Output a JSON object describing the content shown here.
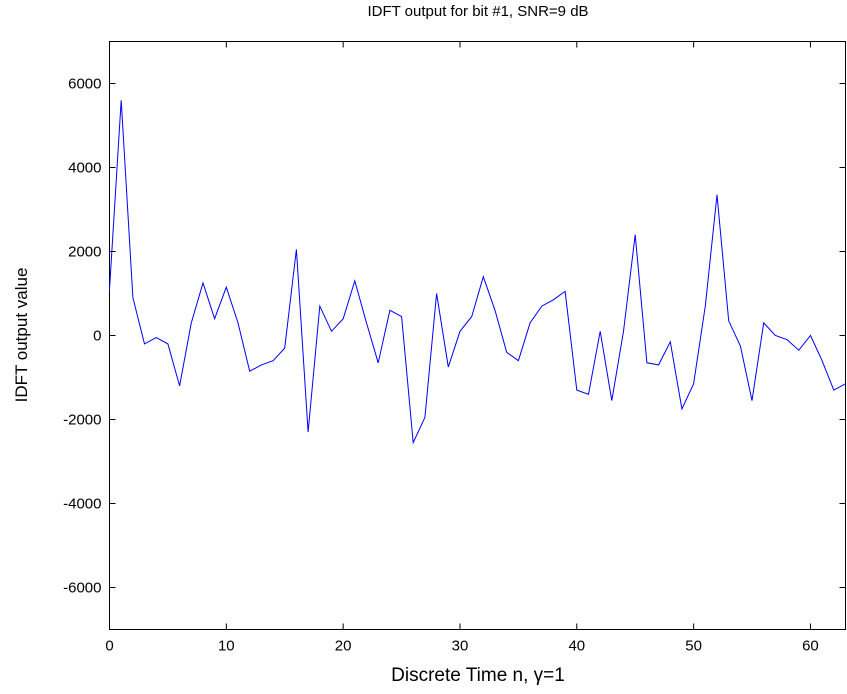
{
  "chart_data": {
    "type": "line",
    "title": "IDFT output for bit #1, SNR=9 dB",
    "xlabel": "Discrete Time n, γ=1",
    "ylabel": "IDFT output value",
    "xlim": [
      0,
      63
    ],
    "ylim": [
      -7000,
      7000
    ],
    "xticks": [
      0,
      10,
      20,
      30,
      40,
      50,
      60
    ],
    "yticks": [
      -6000,
      -4000,
      -2000,
      0,
      2000,
      4000,
      6000
    ],
    "grid": false,
    "series_color": "#0000ff",
    "x": [
      0,
      1,
      2,
      3,
      4,
      5,
      6,
      7,
      8,
      9,
      10,
      11,
      12,
      13,
      14,
      15,
      16,
      17,
      18,
      19,
      20,
      21,
      22,
      23,
      24,
      25,
      26,
      27,
      28,
      29,
      30,
      31,
      32,
      33,
      34,
      35,
      36,
      37,
      38,
      39,
      40,
      41,
      42,
      43,
      44,
      45,
      46,
      47,
      48,
      49,
      50,
      51,
      52,
      53,
      54,
      55,
      56,
      57,
      58,
      59,
      60,
      61,
      62,
      63
    ],
    "y": [
      1100,
      5600,
      900,
      -200,
      -50,
      -200,
      -1200,
      300,
      1250,
      400,
      1150,
      300,
      -850,
      -700,
      -600,
      -300,
      2050,
      -2300,
      700,
      100,
      400,
      1300,
      300,
      -650,
      600,
      450,
      -2550,
      -1950,
      1000,
      -750,
      100,
      450,
      1400,
      600,
      -400,
      -600,
      300,
      700,
      850,
      1050,
      -1300,
      -1400,
      100,
      -1550,
      100,
      2400,
      -650,
      -700,
      -150,
      -1750,
      -1150,
      700,
      3350,
      350,
      -250,
      -1550,
      300,
      0,
      -100,
      -350,
      0,
      -600,
      -1300,
      -1150
    ]
  }
}
